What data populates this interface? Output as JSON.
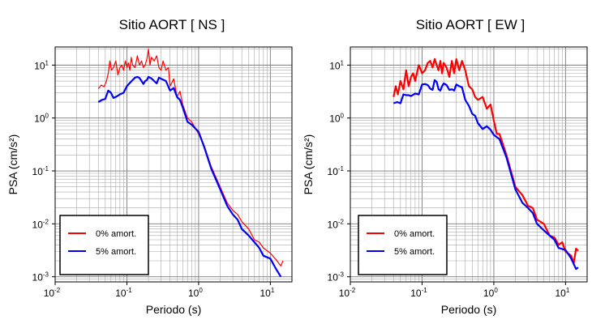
{
  "chart_data": [
    {
      "type": "line",
      "title": "Sitio AORT [ NS ]",
      "xlabel": "Periodo (s)",
      "ylabel": "PSA (cm/s²)",
      "xscale": "log",
      "yscale": "log",
      "xlim": [
        0.01,
        20
      ],
      "ylim": [
        0.0008,
        22
      ],
      "grid": true,
      "legend_position": "bottom-left",
      "x_ticks": [
        {
          "base": "10",
          "exp": "-2",
          "value": 0.01
        },
        {
          "base": "10",
          "exp": "-1",
          "value": 0.1
        },
        {
          "base": "10",
          "exp": "0",
          "value": 1
        },
        {
          "base": "10",
          "exp": "1",
          "value": 10
        }
      ],
      "y_ticks": [
        {
          "base": "10",
          "exp": "1",
          "value": 10
        },
        {
          "base": "10",
          "exp": "0",
          "value": 1
        },
        {
          "base": "10",
          "exp": "-1",
          "value": 0.1
        },
        {
          "base": "10",
          "exp": "-2",
          "value": 0.01
        },
        {
          "base": "10",
          "exp": "-3",
          "value": 0.001
        }
      ],
      "series": [
        {
          "name": "0% amort.",
          "color": "#ff0000",
          "width": 1.2,
          "x": [
            0.04,
            0.044,
            0.048,
            0.052,
            0.055,
            0.058,
            0.061,
            0.065,
            0.07,
            0.075,
            0.08,
            0.085,
            0.09,
            0.095,
            0.1,
            0.105,
            0.11,
            0.115,
            0.12,
            0.13,
            0.14,
            0.15,
            0.16,
            0.17,
            0.18,
            0.19,
            0.2,
            0.21,
            0.22,
            0.24,
            0.26,
            0.28,
            0.3,
            0.32,
            0.35,
            0.38,
            0.4,
            0.45,
            0.5,
            0.55,
            0.6,
            0.7,
            0.8,
            1.0,
            1.2,
            1.5,
            2.0,
            2.5,
            3.0,
            3.5,
            4.0,
            5.0,
            6.0,
            7.0,
            8.0,
            10.0,
            12.0,
            14.0,
            15.0
          ],
          "y": [
            3.6,
            4.2,
            3.9,
            5.0,
            7.0,
            12.0,
            8.0,
            9.0,
            12.0,
            6.5,
            9.0,
            10.0,
            8.0,
            12.0,
            9.0,
            11.0,
            8.0,
            14.0,
            10.0,
            9.0,
            15.0,
            10.0,
            12.0,
            9.0,
            10.0,
            13.0,
            20.0,
            10.0,
            14.0,
            12.0,
            15.0,
            9.0,
            8.0,
            12.0,
            8.0,
            9.0,
            4.0,
            5.5,
            2.5,
            3.2,
            1.8,
            1.0,
            0.85,
            0.5,
            0.3,
            0.12,
            0.05,
            0.025,
            0.018,
            0.015,
            0.011,
            0.008,
            0.005,
            0.0045,
            0.0035,
            0.0028,
            0.0021,
            0.0016,
            0.002
          ]
        },
        {
          "name": "5% amort.",
          "color": "#0000ff",
          "width": 2.2,
          "x": [
            0.04,
            0.045,
            0.05,
            0.055,
            0.06,
            0.065,
            0.07,
            0.08,
            0.09,
            0.1,
            0.11,
            0.12,
            0.13,
            0.14,
            0.15,
            0.16,
            0.17,
            0.18,
            0.19,
            0.2,
            0.22,
            0.24,
            0.26,
            0.28,
            0.3,
            0.35,
            0.4,
            0.45,
            0.5,
            0.55,
            0.6,
            0.7,
            0.8,
            1.0,
            1.2,
            1.5,
            2.0,
            2.5,
            3.0,
            3.5,
            4.0,
            5.0,
            6.0,
            7.0,
            8.0,
            10.0,
            12.0,
            14.0
          ],
          "y": [
            2.0,
            2.2,
            2.3,
            3.3,
            3.0,
            2.4,
            2.5,
            2.8,
            3.0,
            4.0,
            4.6,
            5.2,
            5.8,
            6.0,
            5.7,
            5.0,
            4.4,
            5.0,
            5.2,
            6.0,
            5.6,
            5.0,
            4.5,
            5.8,
            5.5,
            5.0,
            3.3,
            3.7,
            2.5,
            2.2,
            1.6,
            0.85,
            0.75,
            0.55,
            0.28,
            0.11,
            0.045,
            0.022,
            0.015,
            0.012,
            0.008,
            0.006,
            0.0045,
            0.0035,
            0.0025,
            0.0022,
            0.0014,
            0.001
          ]
        }
      ]
    },
    {
      "type": "line",
      "title": "Sitio AORT [ EW ]",
      "xlabel": "Periodo (s)",
      "ylabel": "PSA (cm/s²)",
      "xscale": "log",
      "yscale": "log",
      "xlim": [
        0.01,
        20
      ],
      "ylim": [
        0.0008,
        22
      ],
      "grid": true,
      "legend_position": "bottom-left",
      "x_ticks": [
        {
          "base": "10",
          "exp": "-2",
          "value": 0.01
        },
        {
          "base": "10",
          "exp": "-1",
          "value": 0.1
        },
        {
          "base": "10",
          "exp": "0",
          "value": 1
        },
        {
          "base": "10",
          "exp": "1",
          "value": 10
        }
      ],
      "y_ticks": [
        {
          "base": "10",
          "exp": "1",
          "value": 10
        },
        {
          "base": "10",
          "exp": "0",
          "value": 1
        },
        {
          "base": "10",
          "exp": "-1",
          "value": 0.1
        },
        {
          "base": "10",
          "exp": "-2",
          "value": 0.01
        },
        {
          "base": "10",
          "exp": "-3",
          "value": 0.001
        }
      ],
      "series": [
        {
          "name": "0% amort.",
          "color": "#ff0000",
          "width": 2.2,
          "x": [
            0.04,
            0.043,
            0.046,
            0.05,
            0.055,
            0.06,
            0.065,
            0.07,
            0.075,
            0.08,
            0.09,
            0.1,
            0.11,
            0.12,
            0.13,
            0.14,
            0.15,
            0.16,
            0.17,
            0.18,
            0.19,
            0.2,
            0.22,
            0.24,
            0.26,
            0.28,
            0.3,
            0.33,
            0.36,
            0.4,
            0.45,
            0.5,
            0.55,
            0.6,
            0.7,
            0.8,
            0.9,
            1.0,
            1.1,
            1.2,
            1.5,
            2.0,
            2.5,
            3.0,
            3.5,
            4.0,
            5.0,
            6.0,
            7.0,
            8.0,
            9.0,
            10.0,
            12.0,
            13.0,
            14.0,
            15.0
          ],
          "y": [
            2.5,
            4.0,
            2.8,
            5.0,
            3.5,
            8.0,
            4.0,
            6.0,
            7.0,
            5.0,
            10.0,
            7.0,
            8.0,
            11.0,
            12.0,
            9.0,
            13.0,
            10.0,
            8.0,
            12.0,
            7.0,
            11.0,
            9.0,
            6.0,
            12.0,
            7.0,
            13.0,
            8.0,
            12.0,
            8.0,
            4.0,
            3.5,
            2.5,
            2.2,
            2.5,
            1.5,
            1.8,
            0.9,
            0.5,
            0.5,
            0.2,
            0.05,
            0.035,
            0.022,
            0.02,
            0.012,
            0.01,
            0.006,
            0.0055,
            0.004,
            0.0045,
            0.003,
            0.0025,
            0.0018,
            0.0034,
            0.0031
          ]
        },
        {
          "name": "5% amort.",
          "color": "#0000ff",
          "width": 2.2,
          "x": [
            0.04,
            0.045,
            0.05,
            0.055,
            0.06,
            0.065,
            0.07,
            0.08,
            0.09,
            0.1,
            0.11,
            0.12,
            0.13,
            0.14,
            0.15,
            0.16,
            0.17,
            0.18,
            0.19,
            0.2,
            0.22,
            0.24,
            0.26,
            0.28,
            0.3,
            0.33,
            0.36,
            0.4,
            0.45,
            0.5,
            0.55,
            0.6,
            0.7,
            0.8,
            0.9,
            1.0,
            1.2,
            1.5,
            2.0,
            2.5,
            3.0,
            3.5,
            4.0,
            5.0,
            6.0,
            7.0,
            8.0,
            10.0,
            12.0,
            14.0,
            15.0
          ],
          "y": [
            1.9,
            2.0,
            1.9,
            2.8,
            2.7,
            2.7,
            2.6,
            2.9,
            2.8,
            4.3,
            4.4,
            4.2,
            3.6,
            3.4,
            5.2,
            4.8,
            3.5,
            3.3,
            4.0,
            4.5,
            4.2,
            3.4,
            3.5,
            3.3,
            4.3,
            4.0,
            3.8,
            2.2,
            1.7,
            1.2,
            1.1,
            0.8,
            0.62,
            0.7,
            0.6,
            0.48,
            0.4,
            0.18,
            0.045,
            0.025,
            0.02,
            0.016,
            0.01,
            0.0075,
            0.006,
            0.005,
            0.0035,
            0.0032,
            0.0022,
            0.0014,
            0.0015
          ]
        }
      ]
    }
  ]
}
